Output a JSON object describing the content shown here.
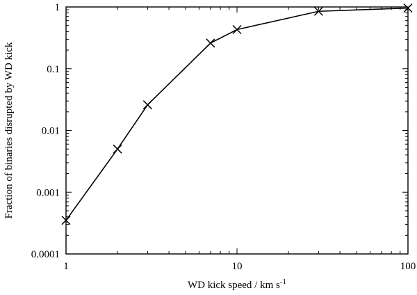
{
  "chart_data": {
    "type": "line",
    "title": "",
    "xlabel": "WD kick speed / km s",
    "xlabel_superscript": "-1",
    "ylabel": "Fraction of binaries disrupted by WD kick",
    "x_scale": "log",
    "y_scale": "log",
    "xlim": [
      1,
      100
    ],
    "ylim": [
      0.0001,
      1
    ],
    "x_ticks": [
      {
        "value": 1,
        "label": "1"
      },
      {
        "value": 10,
        "label": "10"
      },
      {
        "value": 100,
        "label": "100"
      }
    ],
    "y_ticks": [
      {
        "value": 0.0001,
        "label": "0.0001"
      },
      {
        "value": 0.001,
        "label": "0.001"
      },
      {
        "value": 0.01,
        "label": "0.01"
      },
      {
        "value": 0.1,
        "label": "0.1"
      },
      {
        "value": 1,
        "label": "1"
      }
    ],
    "grid": false,
    "legend": "none",
    "marker": "x",
    "series": [
      {
        "x": [
          1,
          2,
          3,
          7,
          10,
          30,
          100
        ],
        "y": [
          0.00035,
          0.005,
          0.026,
          0.26,
          0.43,
          0.85,
          0.96
        ]
      }
    ]
  }
}
